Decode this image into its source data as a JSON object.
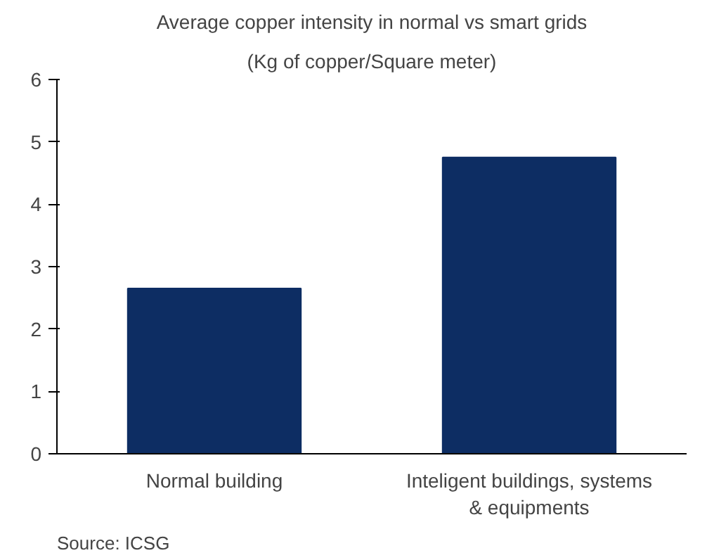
{
  "chart_data": {
    "type": "bar",
    "title": "Average copper intensity in normal vs smart grids",
    "subtitle": "(Kg of copper/Square meter)",
    "categories": [
      "Normal building",
      "Inteligent buildings, systems & equipments"
    ],
    "values": [
      2.65,
      4.75
    ],
    "color": "#0d2d63",
    "ylim": [
      0,
      6
    ],
    "yticks": [
      0,
      1,
      2,
      3,
      4,
      5,
      6
    ],
    "grid": false,
    "annotations": [
      "Source: ICSG"
    ]
  }
}
